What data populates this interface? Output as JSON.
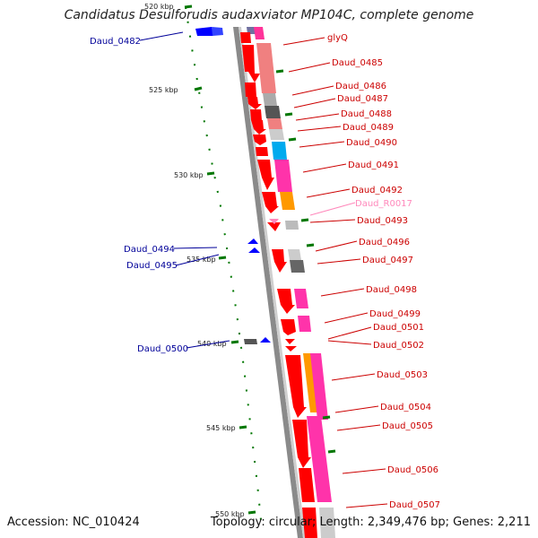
{
  "header": {
    "title": "Candidatus Desulforudis audaxviator MP104C, complete genome"
  },
  "footer": {
    "accession": "Accession: NC_010424",
    "topology": "Topology: circular; Length: 2,349,476 bp; Genes: 2,211"
  },
  "colors": {
    "cds_red": "#ff0000",
    "minus_blue": "#0000ff",
    "label_red": "#cc0000",
    "label_blue": "#000099",
    "label_pink": "#ff88bb",
    "gc_green": "#007700",
    "backbone": "#888888"
  },
  "ticks": [
    "520 kbp",
    "525 kbp",
    "530 kbp",
    "535 kbp",
    "540 kbp",
    "545 kbp",
    "550 kbp"
  ],
  "labels_right": [
    "glyQ",
    "Daud_0485",
    "Daud_0486",
    "Daud_0487",
    "Daud_0488",
    "Daud_0489",
    "Daud_0490",
    "Daud_0491",
    "Daud_0492",
    "Daud_R0017",
    "Daud_0493",
    "Daud_0496",
    "Daud_0497",
    "Daud_0498",
    "Daud_0499",
    "Daud_0501",
    "Daud_0502",
    "Daud_0503",
    "Daud_0504",
    "Daud_0505",
    "Daud_0506",
    "Daud_0507"
  ],
  "labels_left": [
    "Daud_0482",
    "Daud_0494",
    "Daud_0495",
    "Daud_0500"
  ]
}
